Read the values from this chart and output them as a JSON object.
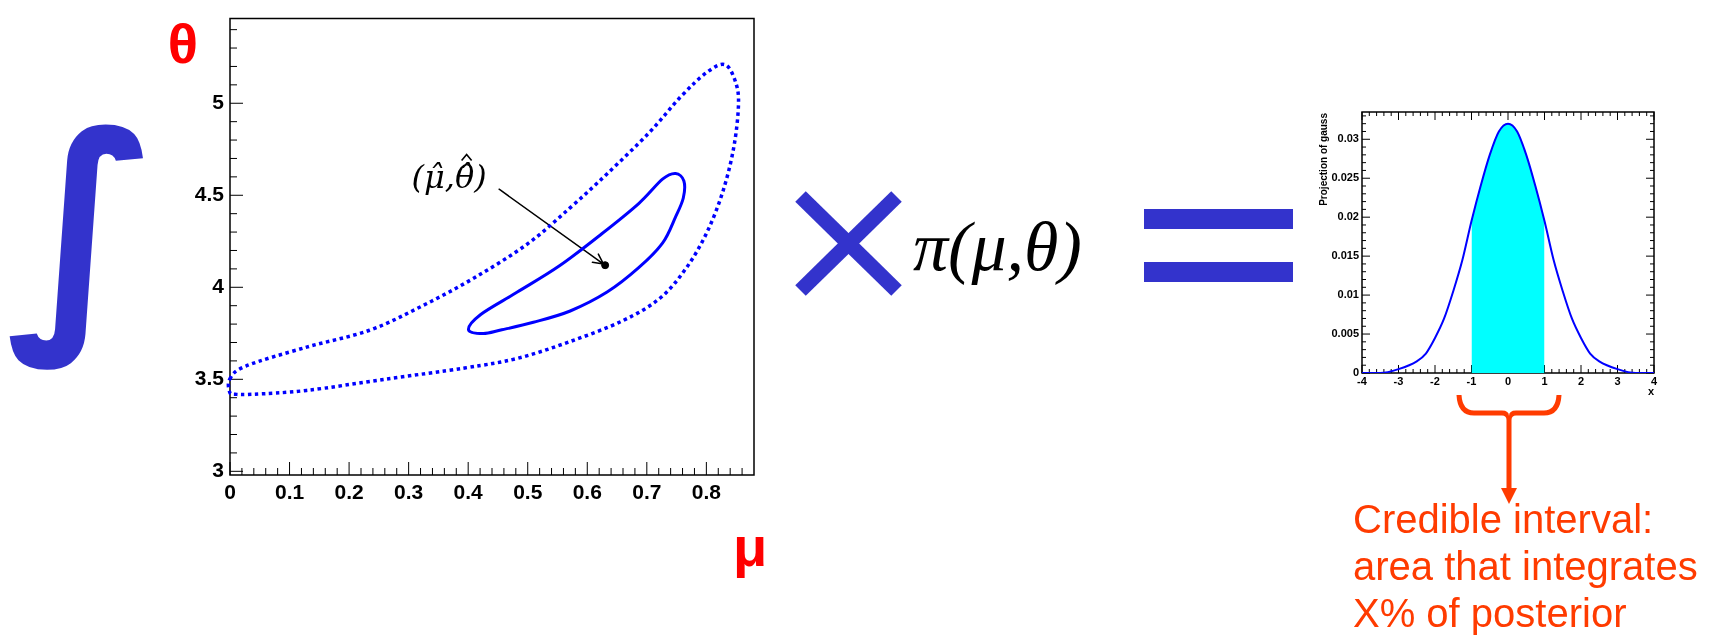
{
  "chart_data": [
    {
      "type": "scatter",
      "xlabel": "μ",
      "ylabel": "θ",
      "annotations": [
        "∫",
        {
          "text": "(μ̂,θ̂)",
          "x": 0.63,
          "y": 4.12
        },
        "π(μ,θ)"
      ],
      "xlim": [
        0,
        0.88
      ],
      "ylim": [
        2.98,
        5.46
      ],
      "xticks": [
        0,
        {
          "value": 0.02,
          "label": null
        },
        {
          "value": 0.04,
          "label": null
        },
        {
          "value": 0.06,
          "label": null
        },
        {
          "value": 0.08,
          "label": null
        },
        0.1,
        {
          "value": 0.12,
          "label": null
        },
        {
          "value": 0.14,
          "label": null
        },
        {
          "value": 0.16,
          "label": null
        },
        {
          "value": 0.18,
          "label": null
        },
        0.2,
        {
          "value": 0.22,
          "label": null
        },
        {
          "value": 0.24,
          "label": null
        },
        {
          "value": 0.26,
          "label": null
        },
        {
          "value": 0.28,
          "label": null
        },
        0.3,
        {
          "value": 0.32,
          "label": null
        },
        {
          "value": 0.34,
          "label": null
        },
        {
          "value": 0.36,
          "label": null
        },
        {
          "value": 0.38,
          "label": null
        },
        0.4,
        {
          "value": 0.42,
          "label": null
        },
        {
          "value": 0.44,
          "label": null
        },
        {
          "value": 0.46,
          "label": null
        },
        {
          "value": 0.48,
          "label": null
        },
        0.5,
        {
          "value": 0.52,
          "label": null
        },
        {
          "value": 0.54,
          "label": null
        },
        {
          "value": 0.56,
          "label": null
        },
        {
          "value": 0.58,
          "label": null
        },
        0.6,
        {
          "value": 0.62,
          "label": null
        },
        {
          "value": 0.64,
          "label": null
        },
        {
          "value": 0.66,
          "label": null
        },
        {
          "value": 0.68,
          "label": null
        },
        0.7,
        {
          "value": 0.72,
          "label": null
        },
        {
          "value": 0.74,
          "label": null
        },
        {
          "value": 0.76,
          "label": null
        },
        {
          "value": 0.78,
          "label": null
        },
        0.8,
        {
          "value": 0.82,
          "label": null
        },
        {
          "value": 0.84,
          "label": null
        },
        {
          "value": 0.86,
          "label": null
        }
      ],
      "yticks": [
        3,
        {
          "value": 3.1,
          "label": null
        },
        {
          "value": 3.2,
          "label": null
        },
        {
          "value": 3.3,
          "label": null
        },
        {
          "value": 3.4,
          "label": null
        },
        3.5,
        {
          "value": 3.6,
          "label": null
        },
        {
          "value": 3.7,
          "label": null
        },
        {
          "value": 3.8,
          "label": null
        },
        {
          "value": 3.9,
          "label": null
        },
        4,
        {
          "value": 4.1,
          "label": null
        },
        {
          "value": 4.2,
          "label": null
        },
        {
          "value": 4.3,
          "label": null
        },
        {
          "value": 4.4,
          "label": null
        },
        4.5,
        {
          "value": 4.6,
          "label": null
        },
        {
          "value": 4.7,
          "label": null
        },
        {
          "value": 4.8,
          "label": null
        },
        {
          "value": 4.9,
          "label": null
        },
        5,
        {
          "value": 5.1,
          "label": null
        },
        {
          "value": 5.2,
          "label": null
        },
        {
          "value": 5.3,
          "label": null
        },
        {
          "value": 5.4,
          "label": null
        }
      ],
      "series": [
        {
          "color": "#000000",
          "marker": "circle",
          "x": [
            0.63
          ],
          "values": [
            4.12
          ]
        }
      ]
    },
    {
      "type": "line",
      "xlabel": "x",
      "ylabel": "Projection of gauss",
      "annotations": [
        "Credible interval:\narea that integrates\nX% of posterior"
      ],
      "xlim": [
        -4,
        4
      ],
      "ylim": [
        0,
        0.0335
      ],
      "xticks": [
        -4,
        {
          "value": -3.8,
          "label": null
        },
        {
          "value": -3.6,
          "label": null
        },
        {
          "value": -3.4,
          "label": null
        },
        {
          "value": -3.2,
          "label": null
        },
        -3,
        {
          "value": -2.8,
          "label": null
        },
        {
          "value": -2.6,
          "label": null
        },
        {
          "value": -2.4,
          "label": null
        },
        {
          "value": -2.2,
          "label": null
        },
        -2,
        {
          "value": -1.8,
          "label": null
        },
        {
          "value": -1.6,
          "label": null
        },
        {
          "value": -1.4,
          "label": null
        },
        {
          "value": -1.2,
          "label": null
        },
        -1,
        {
          "value": -0.8,
          "label": null
        },
        {
          "value": -0.6,
          "label": null
        },
        {
          "value": -0.4,
          "label": null
        },
        {
          "value": -0.2,
          "label": null
        },
        0,
        {
          "value": 0.2,
          "label": null
        },
        {
          "value": 0.4,
          "label": null
        },
        {
          "value": 0.6,
          "label": null
        },
        {
          "value": 0.8,
          "label": null
        },
        1,
        {
          "value": 1.2,
          "label": null
        },
        {
          "value": 1.4,
          "label": null
        },
        {
          "value": 1.6,
          "label": null
        },
        {
          "value": 1.8,
          "label": null
        },
        2,
        {
          "value": 2.2,
          "label": null
        },
        {
          "value": 2.4,
          "label": null
        },
        {
          "value": 2.6,
          "label": null
        },
        {
          "value": 2.8,
          "label": null
        },
        3,
        {
          "value": 3.2,
          "label": null
        },
        {
          "value": 3.4,
          "label": null
        },
        {
          "value": 3.6,
          "label": null
        },
        {
          "value": 3.8,
          "label": null
        },
        4
      ],
      "yticks": [
        0,
        {
          "value": 0.001,
          "label": null
        },
        {
          "value": 0.002,
          "label": null
        },
        {
          "value": 0.003,
          "label": null
        },
        {
          "value": 0.004,
          "label": null
        },
        0.005,
        {
          "value": 0.006,
          "label": null
        },
        {
          "value": 0.007,
          "label": null
        },
        {
          "value": 0.008,
          "label": null
        },
        {
          "value": 0.009,
          "label": null
        },
        0.01,
        {
          "value": 0.011,
          "label": null
        },
        {
          "value": 0.012,
          "label": null
        },
        {
          "value": 0.013,
          "label": null
        },
        {
          "value": 0.014,
          "label": null
        },
        0.015,
        {
          "value": 0.016,
          "label": null
        },
        {
          "value": 0.017,
          "label": null
        },
        {
          "value": 0.018,
          "label": null
        },
        {
          "value": 0.019,
          "label": null
        },
        0.02,
        {
          "value": 0.021,
          "label": null
        },
        {
          "value": 0.022,
          "label": null
        },
        {
          "value": 0.023,
          "label": null
        },
        {
          "value": 0.024,
          "label": null
        },
        0.025,
        {
          "value": 0.026,
          "label": null
        },
        {
          "value": 0.027,
          "label": null
        },
        {
          "value": 0.028,
          "label": null
        },
        {
          "value": 0.029,
          "label": null
        },
        0.03,
        {
          "value": 0.031,
          "label": null
        },
        {
          "value": 0.032,
          "label": null
        },
        {
          "value": 0.033,
          "label": null
        }
      ],
      "series": [
        {
          "type": "area",
          "color": "#00ffff",
          "x": [
            -1,
            -0.75,
            -0.5,
            -0.25,
            0,
            0.25,
            0.5,
            0.75,
            1
          ],
          "values": [
            0.0195,
            0.024,
            0.028,
            0.031,
            0.032,
            0.031,
            0.028,
            0.024,
            0.0195
          ]
        },
        {
          "color": "#0000ff",
          "x": [
            -4,
            -3.5,
            -3,
            -2.5,
            -2.25,
            -2,
            -1.75,
            -1.5,
            -1.25,
            -1,
            -0.75,
            -0.5,
            -0.25,
            0,
            0.25,
            0.5,
            0.75,
            1,
            1.25,
            1.5,
            1.75,
            2,
            2.25,
            2.5,
            3,
            3.5,
            4
          ],
          "values": [
            0,
            0,
            0.0005,
            0.0015,
            0.0025,
            0.0045,
            0.007,
            0.0105,
            0.0145,
            0.0195,
            0.024,
            0.028,
            0.031,
            0.032,
            0.031,
            0.028,
            0.024,
            0.0195,
            0.0145,
            0.0105,
            0.007,
            0.0045,
            0.0025,
            0.0015,
            0.0005,
            0,
            0
          ]
        }
      ]
    }
  ]
}
